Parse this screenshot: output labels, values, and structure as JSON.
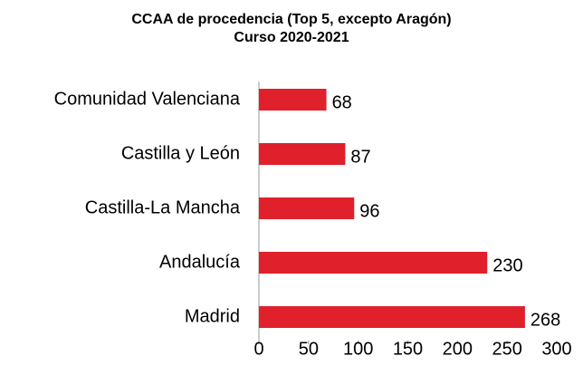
{
  "chart_data": {
    "type": "bar",
    "orientation": "horizontal",
    "title": "CCAA de procedencia (Top 5, excepto Aragón)",
    "subtitle": "Curso 2020-2021",
    "categories": [
      "Comunidad Valenciana",
      "Castilla y León",
      "Castilla-La Mancha",
      "Andalucía",
      "Madrid"
    ],
    "values": [
      68,
      87,
      96,
      230,
      268
    ],
    "color": "#e0202a",
    "xlim": [
      0,
      300
    ],
    "xticks": [
      0,
      50,
      100,
      150,
      200,
      250,
      300
    ],
    "grid": false
  }
}
